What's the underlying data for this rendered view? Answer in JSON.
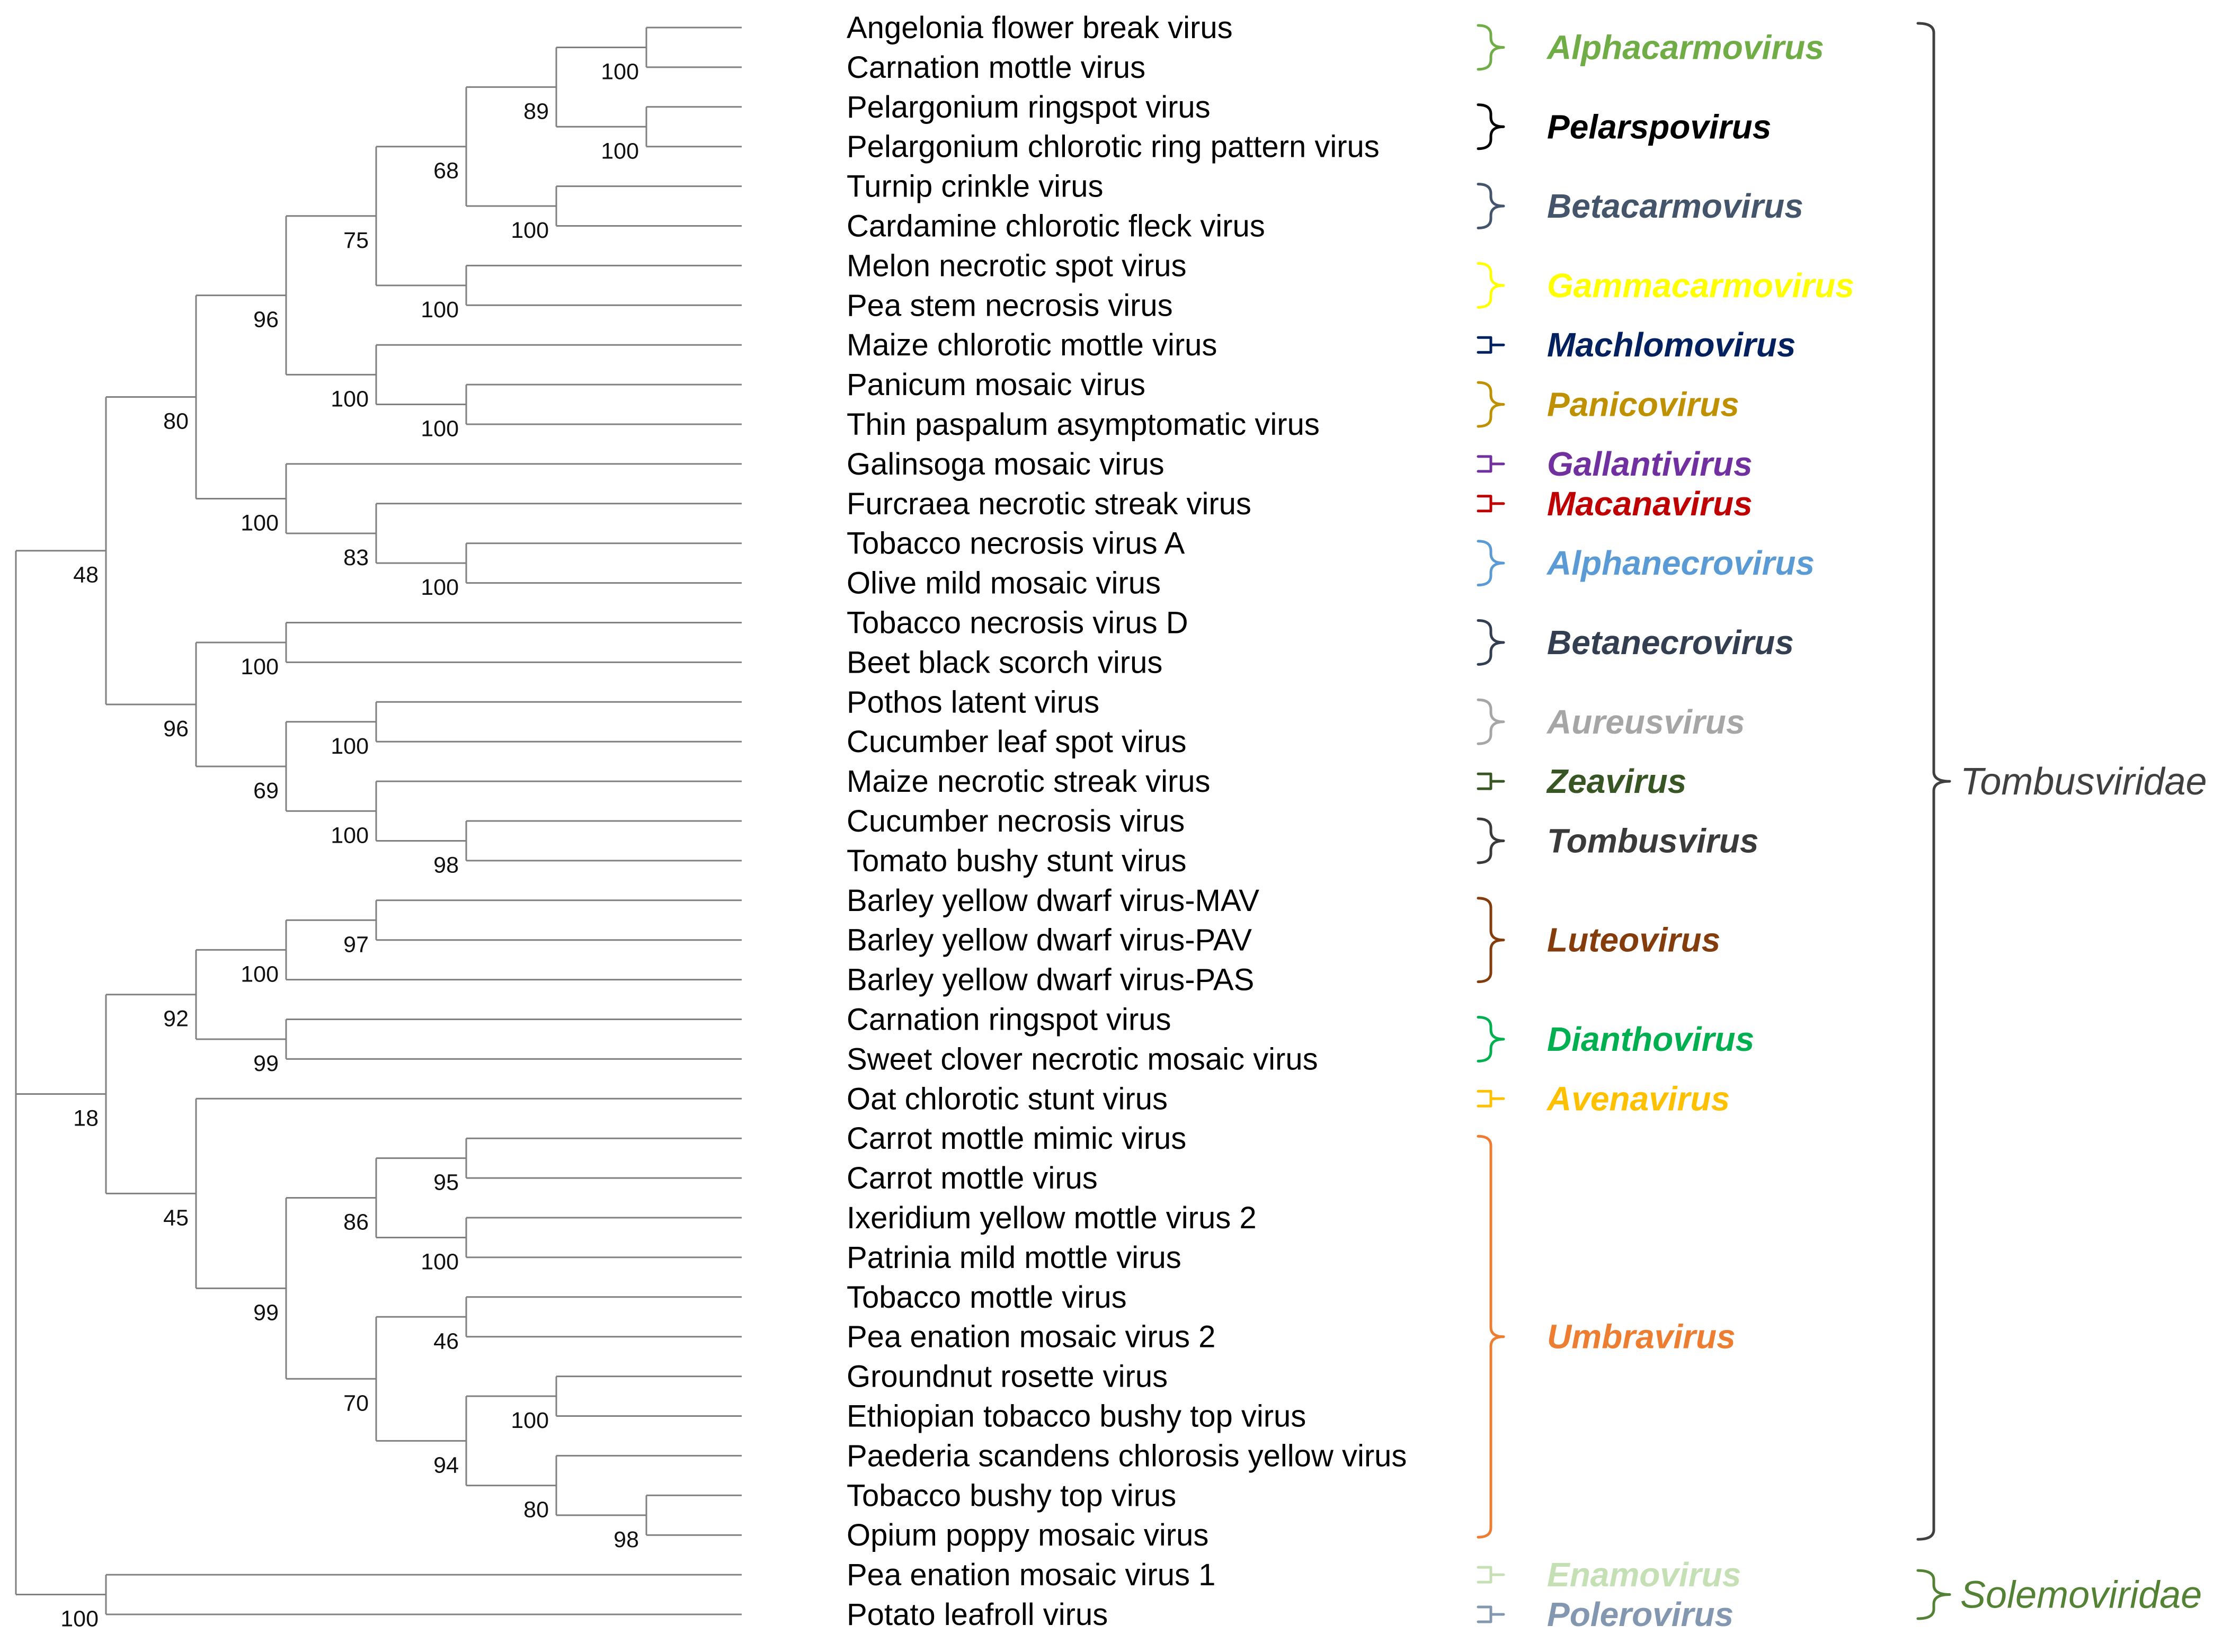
{
  "leaves": [
    {
      "label": "Angelonia flower break virus"
    },
    {
      "label": "Carnation mottle virus"
    },
    {
      "label": "Pelargonium ringspot virus"
    },
    {
      "label": "Pelargonium chlorotic ring pattern virus"
    },
    {
      "label": "Turnip crinkle virus"
    },
    {
      "label": "Cardamine chlorotic fleck virus"
    },
    {
      "label": "Melon necrotic spot virus"
    },
    {
      "label": "Pea stem necrosis virus"
    },
    {
      "label": "Maize chlorotic mottle virus"
    },
    {
      "label": "Panicum mosaic virus"
    },
    {
      "label": "Thin paspalum asymptomatic virus"
    },
    {
      "label": "Galinsoga mosaic virus"
    },
    {
      "label": "Furcraea necrotic streak virus"
    },
    {
      "label": "Tobacco necrosis virus A"
    },
    {
      "label": "Olive mild mosaic virus"
    },
    {
      "label": "Tobacco necrosis virus D"
    },
    {
      "label": "Beet black scorch virus"
    },
    {
      "label": "Pothos latent virus"
    },
    {
      "label": "Cucumber leaf spot virus"
    },
    {
      "label": "Maize necrotic streak virus"
    },
    {
      "label": "Cucumber necrosis virus"
    },
    {
      "label": "Tomato bushy stunt virus"
    },
    {
      "label": "Barley yellow dwarf virus-MAV"
    },
    {
      "label": "Barley yellow dwarf virus-PAV"
    },
    {
      "label": "Barley yellow dwarf virus-PAS"
    },
    {
      "label": "Carnation ringspot virus"
    },
    {
      "label": "Sweet clover necrotic mosaic virus"
    },
    {
      "label": "Oat chlorotic stunt virus"
    },
    {
      "label": "Carrot mottle mimic virus"
    },
    {
      "label": "Carrot mottle virus"
    },
    {
      "label": "Ixeridium yellow mottle virus 2"
    },
    {
      "label": "Patrinia mild mottle virus"
    },
    {
      "label": "Tobacco mottle virus"
    },
    {
      "label": "Pea enation mosaic virus 2"
    },
    {
      "label": "Groundnut rosette virus"
    },
    {
      "label": "Ethiopian tobacco bushy top virus"
    },
    {
      "label": "Paederia scandens chlorosis yellow virus",
      "highlight": "#ff0000"
    },
    {
      "label": "Tobacco bushy top virus"
    },
    {
      "label": "Opium poppy mosaic virus"
    },
    {
      "label": "Pea enation mosaic virus 1"
    },
    {
      "label": "Potato leafroll virus"
    }
  ],
  "tree": {
    "support": null,
    "children": [
      {
        "support": "48",
        "children": [
          {
            "support": "80",
            "children": [
              {
                "support": "96",
                "children": [
                  {
                    "support": "75",
                    "children": [
                      {
                        "support": "68",
                        "children": [
                          {
                            "support": "89",
                            "children": [
                              {
                                "support": "100",
                                "children": [
                                  {
                                    "leaf": 0
                                  },
                                  {
                                    "leaf": 1
                                  }
                                ]
                              },
                              {
                                "support": "100",
                                "children": [
                                  {
                                    "leaf": 2
                                  },
                                  {
                                    "leaf": 3
                                  }
                                ]
                              }
                            ]
                          },
                          {
                            "support": "100",
                            "children": [
                              {
                                "leaf": 4
                              },
                              {
                                "leaf": 5
                              }
                            ]
                          }
                        ]
                      },
                      {
                        "support": "100",
                        "children": [
                          {
                            "leaf": 6
                          },
                          {
                            "leaf": 7
                          }
                        ]
                      }
                    ]
                  },
                  {
                    "support": "100",
                    "children": [
                      {
                        "leaf": 8
                      },
                      {
                        "support": "100",
                        "children": [
                          {
                            "leaf": 9
                          },
                          {
                            "leaf": 10
                          }
                        ]
                      }
                    ]
                  }
                ]
              },
              {
                "support": "100",
                "children": [
                  {
                    "leaf": 11
                  },
                  {
                    "support": "83",
                    "children": [
                      {
                        "leaf": 12
                      },
                      {
                        "support": "100",
                        "children": [
                          {
                            "leaf": 13
                          },
                          {
                            "leaf": 14
                          }
                        ]
                      }
                    ]
                  }
                ]
              }
            ]
          },
          {
            "support": "96",
            "children": [
              {
                "support": "100",
                "children": [
                  {
                    "leaf": 15
                  },
                  {
                    "leaf": 16
                  }
                ]
              },
              {
                "support": "69",
                "children": [
                  {
                    "support": "100",
                    "children": [
                      {
                        "leaf": 17
                      },
                      {
                        "leaf": 18
                      }
                    ]
                  },
                  {
                    "support": "100",
                    "children": [
                      {
                        "leaf": 19
                      },
                      {
                        "support": "98",
                        "children": [
                          {
                            "leaf": 20
                          },
                          {
                            "leaf": 21
                          }
                        ]
                      }
                    ]
                  }
                ]
              }
            ]
          }
        ]
      },
      {
        "support": "18",
        "children": [
          {
            "support": "92",
            "children": [
              {
                "support": "100",
                "children": [
                  {
                    "support": "97",
                    "children": [
                      {
                        "leaf": 22
                      },
                      {
                        "leaf": 23
                      }
                    ]
                  },
                  {
                    "leaf": 24
                  }
                ]
              },
              {
                "support": "99",
                "children": [
                  {
                    "leaf": 25
                  },
                  {
                    "leaf": 26
                  }
                ]
              }
            ]
          },
          {
            "support": "45",
            "children": [
              {
                "leaf": 27
              },
              {
                "support": "99",
                "children": [
                  {
                    "support": "86",
                    "children": [
                      {
                        "support": "95",
                        "children": [
                          {
                            "leaf": 28
                          },
                          {
                            "leaf": 29
                          }
                        ]
                      },
                      {
                        "support": "100",
                        "children": [
                          {
                            "leaf": 30
                          },
                          {
                            "leaf": 31
                          }
                        ]
                      }
                    ]
                  },
                  {
                    "support": "70",
                    "children": [
                      {
                        "support": "46",
                        "children": [
                          {
                            "leaf": 32
                          },
                          {
                            "leaf": 33
                          }
                        ]
                      },
                      {
                        "support": "94",
                        "children": [
                          {
                            "support": "100",
                            "children": [
                              {
                                "leaf": 34
                              },
                              {
                                "leaf": 35
                              }
                            ]
                          },
                          {
                            "support": "80",
                            "children": [
                              {
                                "leaf": 36
                              },
                              {
                                "support": "98",
                                "children": [
                                  {
                                    "leaf": 37
                                  },
                                  {
                                    "leaf": 38
                                  }
                                ]
                              }
                            ]
                          }
                        ]
                      }
                    ]
                  }
                ]
              }
            ]
          }
        ]
      },
      {
        "support": "100",
        "children": [
          {
            "leaf": 39
          },
          {
            "leaf": 40
          }
        ]
      }
    ]
  },
  "genera": [
    {
      "label": "Alphacarmovirus",
      "color": "#70ad47",
      "bold": false,
      "from": 0,
      "to": 1
    },
    {
      "label": "Pelarspovirus",
      "color": "#000000",
      "bold": true,
      "from": 2,
      "to": 3
    },
    {
      "label": "Betacarmovirus",
      "color": "#44546a",
      "bold": true,
      "from": 4,
      "to": 5
    },
    {
      "label": "Gammacarmovirus",
      "color": "#ffff00",
      "bold": true,
      "from": 6,
      "to": 7
    },
    {
      "label": "Machlomovirus",
      "color": "#002060",
      "bold": true,
      "from": 8,
      "to": 8
    },
    {
      "label": "Panicovirus",
      "color": "#bf9000",
      "bold": true,
      "from": 9,
      "to": 10
    },
    {
      "label": "Gallantivirus",
      "color": "#7030a0",
      "bold": true,
      "from": 11,
      "to": 11
    },
    {
      "label": "Macanavirus",
      "color": "#c00000",
      "bold": true,
      "from": 12,
      "to": 12
    },
    {
      "label": "Alphanecrovirus",
      "color": "#5b9bd5",
      "bold": true,
      "from": 13,
      "to": 14
    },
    {
      "label": "Betanecrovirus",
      "color": "#333f50",
      "bold": true,
      "from": 15,
      "to": 16
    },
    {
      "label": "Aureusvirus",
      "color": "#a6a6a6",
      "bold": true,
      "from": 17,
      "to": 18
    },
    {
      "label": "Zeavirus",
      "color": "#375623",
      "bold": true,
      "from": 19,
      "to": 19
    },
    {
      "label": "Tombusvirus",
      "color": "#3a3a3a",
      "bold": true,
      "from": 20,
      "to": 21
    },
    {
      "label": "Luteovirus",
      "color": "#843c0c",
      "bold": true,
      "from": 22,
      "to": 24
    },
    {
      "label": "Dianthovirus",
      "color": "#00b050",
      "bold": true,
      "from": 25,
      "to": 26
    },
    {
      "label": "Avenavirus",
      "color": "#ffc000",
      "bold": true,
      "from": 27,
      "to": 27
    },
    {
      "label": "Umbravirus",
      "color": "#ed7d31",
      "bold": true,
      "from": 28,
      "to": 38
    },
    {
      "label": "Enamovirus",
      "color": "#c5e0b4",
      "bold": true,
      "from": 39,
      "to": 39
    },
    {
      "label": "Polerovirus",
      "color": "#8497b0",
      "bold": false,
      "from": 40,
      "to": 40
    }
  ],
  "families": [
    {
      "label": "Tombusviridae",
      "color": "#404040",
      "from": 0,
      "to": 38
    },
    {
      "label": "Solemoviridae",
      "color": "#548235",
      "from": 39,
      "to": 40
    }
  ]
}
